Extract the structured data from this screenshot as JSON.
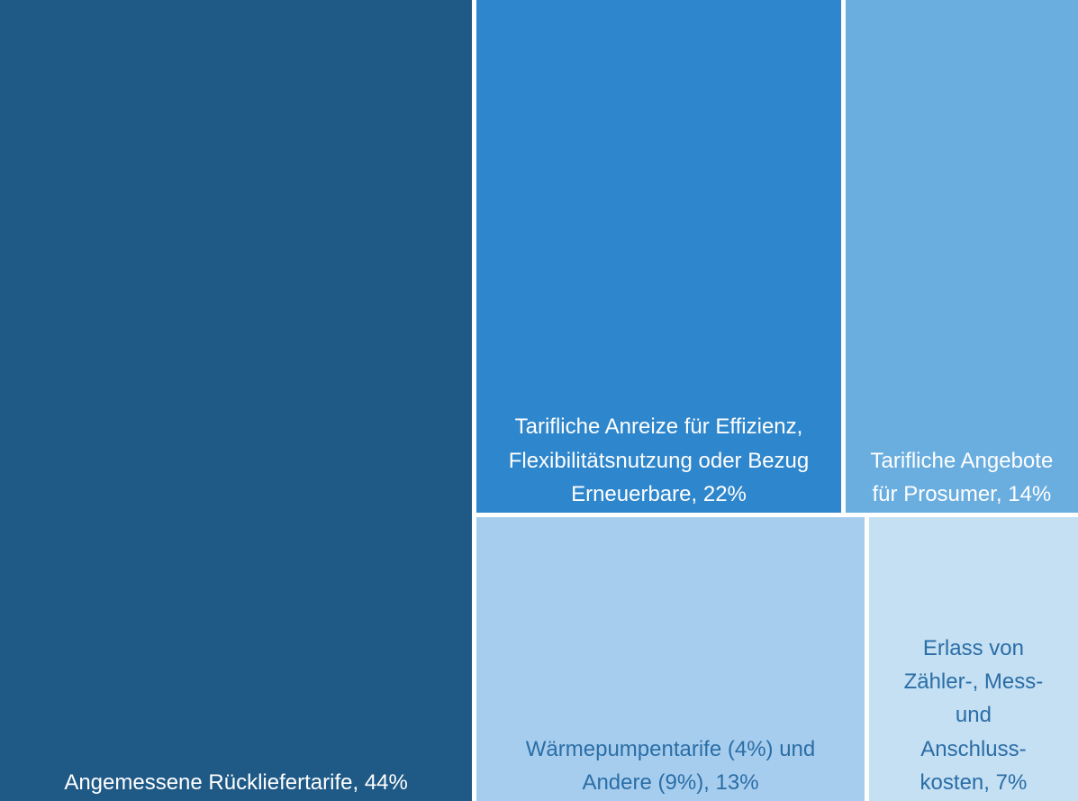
{
  "chart_data": {
    "type": "treemap",
    "categories": [
      "Angemessene Rückliefertarife,",
      "Tarifliche Anreize für Effizienz, Flexibilitätsnutzung oder Bezug Erneuerbare,",
      "Tarifliche Angebote für Prosumer,",
      "Wärmepumpentarife (4%) und Andere (9%),",
      "Erlass von Zähler-, Mess- und Anschluss-kosten,"
    ],
    "values": [
      44,
      22,
      14,
      13,
      7
    ],
    "value_labels": [
      "44%",
      "22%",
      "14%",
      "13%",
      "7%"
    ],
    "colors": [
      "#1f5a87",
      "#2e86cc",
      "#6aaee0",
      "#a7cdee",
      "#c5dff3"
    ],
    "label_colors": [
      "#ffffff",
      "#ffffff",
      "#ffffff",
      "#2a6ea6",
      "#2a6ea6"
    ]
  }
}
